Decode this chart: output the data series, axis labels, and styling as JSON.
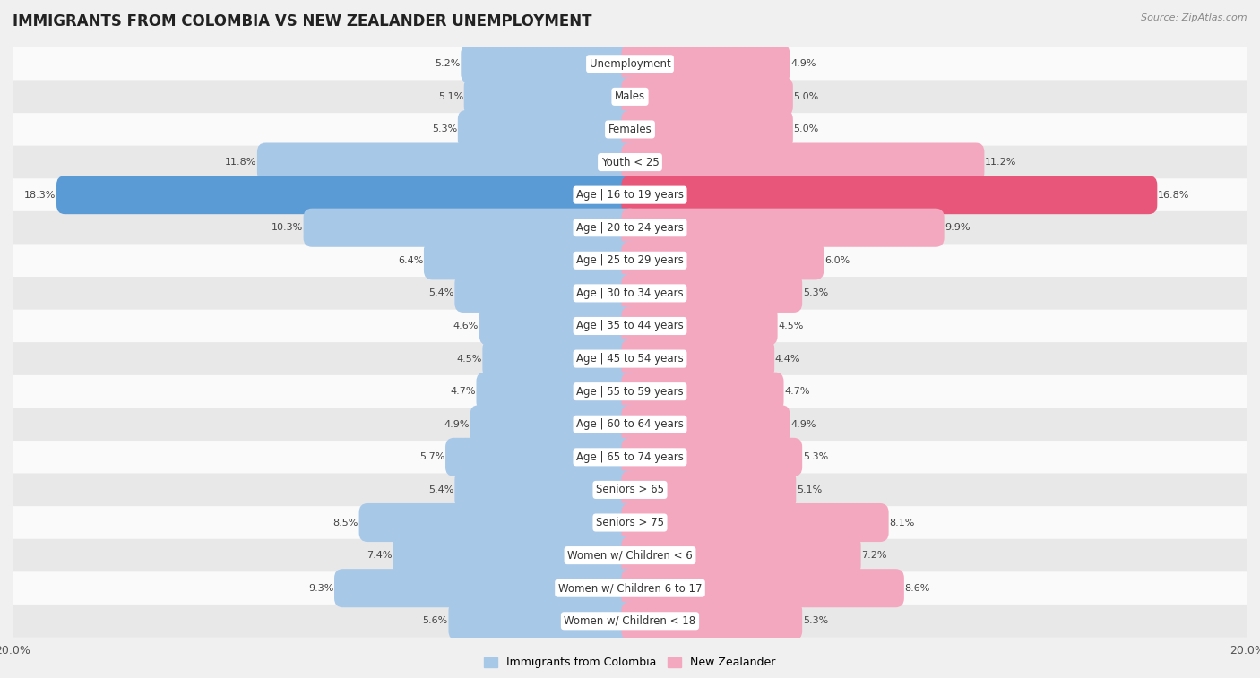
{
  "title": "IMMIGRANTS FROM COLOMBIA VS NEW ZEALANDER UNEMPLOYMENT",
  "source": "Source: ZipAtlas.com",
  "categories": [
    "Unemployment",
    "Males",
    "Females",
    "Youth < 25",
    "Age | 16 to 19 years",
    "Age | 20 to 24 years",
    "Age | 25 to 29 years",
    "Age | 30 to 34 years",
    "Age | 35 to 44 years",
    "Age | 45 to 54 years",
    "Age | 55 to 59 years",
    "Age | 60 to 64 years",
    "Age | 65 to 74 years",
    "Seniors > 65",
    "Seniors > 75",
    "Women w/ Children < 6",
    "Women w/ Children 6 to 17",
    "Women w/ Children < 18"
  ],
  "colombia_values": [
    5.2,
    5.1,
    5.3,
    11.8,
    18.3,
    10.3,
    6.4,
    5.4,
    4.6,
    4.5,
    4.7,
    4.9,
    5.7,
    5.4,
    8.5,
    7.4,
    9.3,
    5.6
  ],
  "nz_values": [
    4.9,
    5.0,
    5.0,
    11.2,
    16.8,
    9.9,
    6.0,
    5.3,
    4.5,
    4.4,
    4.7,
    4.9,
    5.3,
    5.1,
    8.1,
    7.2,
    8.6,
    5.3
  ],
  "colombia_color": "#a8c8e8",
  "nz_color": "#f4a8c0",
  "colombia_color_highlight": "#5b9bd5",
  "nz_color_highlight": "#e8577a",
  "axis_max": 20.0,
  "background_color": "#f0f0f0",
  "row_bg_light": "#fafafa",
  "row_bg_dark": "#e8e8e8",
  "title_fontsize": 12,
  "label_fontsize": 8.5,
  "value_fontsize": 8.0
}
